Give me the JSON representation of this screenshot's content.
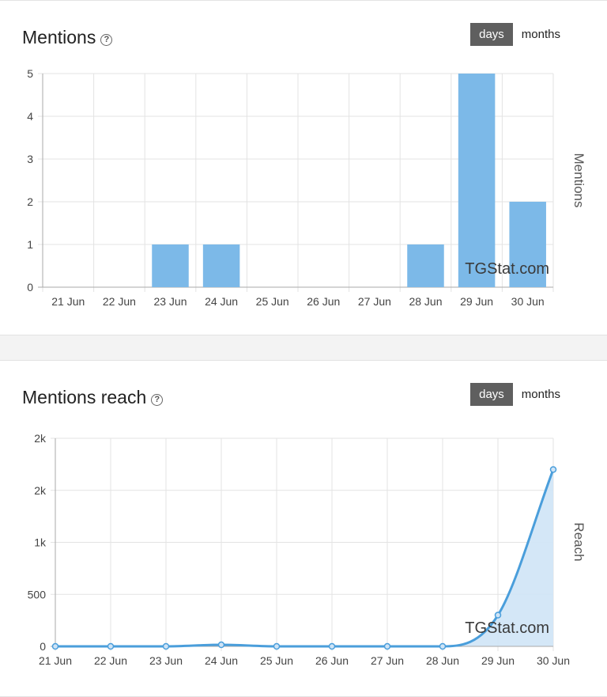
{
  "mentions": {
    "title": "Mentions",
    "help": "?",
    "toggle": {
      "days": "days",
      "months": "months"
    },
    "watermark": "TGStat.com",
    "chart_data": {
      "type": "bar",
      "categories": [
        "21 Jun",
        "22 Jun",
        "23 Jun",
        "24 Jun",
        "25 Jun",
        "26 Jun",
        "27 Jun",
        "28 Jun",
        "29 Jun",
        "30 Jun"
      ],
      "values": [
        0,
        0,
        1,
        1,
        0,
        0,
        0,
        1,
        5,
        2
      ],
      "ylabel": "Mentions",
      "ylim": [
        0,
        5
      ],
      "yticks": [
        "0",
        "1",
        "2",
        "3",
        "4",
        "5"
      ],
      "grid": true,
      "color": "#7cb9e8"
    }
  },
  "reach": {
    "title": "Mentions reach",
    "help": "?",
    "toggle": {
      "days": "days",
      "months": "months"
    },
    "watermark": "TGStat.com",
    "chart_data": {
      "type": "area",
      "categories": [
        "21 Jun",
        "22 Jun",
        "23 Jun",
        "24 Jun",
        "25 Jun",
        "26 Jun",
        "27 Jun",
        "28 Jun",
        "29 Jun",
        "30 Jun"
      ],
      "values": [
        0,
        0,
        0,
        15,
        0,
        0,
        0,
        0,
        300,
        1700
      ],
      "ylabel": "Reach",
      "ylim": [
        0,
        2000
      ],
      "yticks": [
        "0",
        "500",
        "1k",
        "2k",
        "2k"
      ],
      "grid": true,
      "color": "#4a9edb",
      "fill_color": "#cfe4f6"
    }
  }
}
